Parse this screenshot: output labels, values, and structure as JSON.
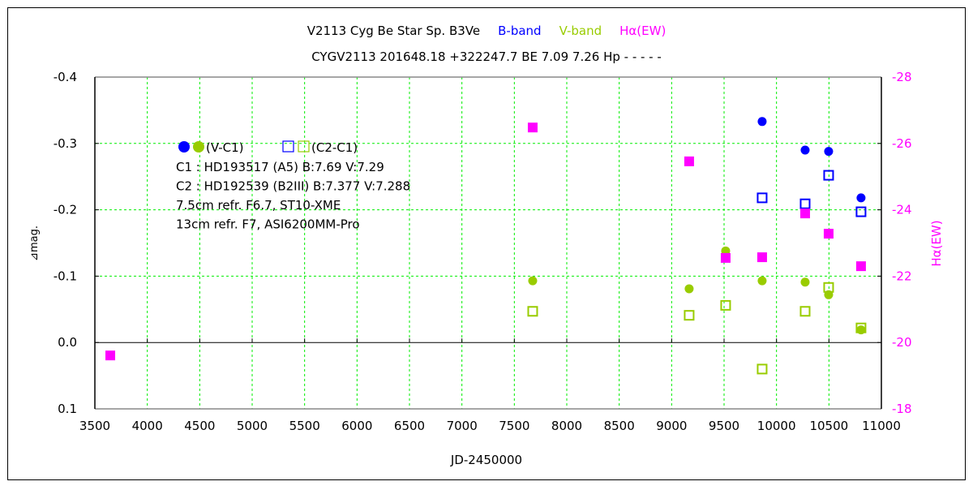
{
  "chart_data": {
    "type": "scatter",
    "title_parts": [
      {
        "text": "V2113 Cyg    Be Star    Sp. B3Ve",
        "color": "#000000"
      },
      {
        "text": "B-band",
        "color": "#0000ff"
      },
      {
        "text": "V-band",
        "color": "#99cc00"
      },
      {
        "text": "Hα(EW)",
        "color": "#ff00ff"
      }
    ],
    "subtitle": "CYGV2113 201648.18 +322247.7 BE 7.09 7.26 Hp - - - - -",
    "xlabel": "JD-2450000",
    "ylabel": "⊿mag.",
    "y2label": "Hα(EW)",
    "xlim": [
      3500,
      11000
    ],
    "ylim": [
      -0.4,
      0.1
    ],
    "y_inverted": true,
    "y2lim": [
      -28,
      -18
    ],
    "xticks": [
      "3500",
      "4000",
      "4500",
      "5000",
      "5500",
      "6000",
      "6500",
      "7000",
      "7500",
      "8000",
      "8500",
      "9000",
      "9500",
      "10000",
      "10500",
      "11000"
    ],
    "yticks": [
      "-0.4",
      "-0.3",
      "-0.2",
      "-0.1",
      "0.0",
      "0.1"
    ],
    "y2ticks": [
      "-28",
      "-26",
      "-24",
      "-22",
      "-20",
      "-18"
    ],
    "grid": true,
    "grid_color": "#00ee00",
    "legend": {
      "line1_a": "(V-C1)",
      "line1_b": "(C2-C1)",
      "lines": [
        "C1 : HD193517 (A5)   B:7.69 V:7.29",
        "C2 : HD192539 (B2III)   B:7.377 V:7.288",
        "7.5cm refr. F6.7,   ST10-XME",
        "13cm refr. F7,    ASI6200MM-Pro"
      ],
      "placement": "top-left"
    },
    "series": [
      {
        "marker": "filled-circle",
        "color": "#0000ff",
        "axis": "left",
        "x": [
          9863,
          10273,
          10497,
          10806
        ],
        "y": [
          -0.333,
          -0.29,
          -0.288,
          -0.218
        ]
      },
      {
        "marker": "open-square",
        "color": "#0000ff",
        "axis": "left",
        "x": [
          9863,
          10273,
          10497,
          10806
        ],
        "y": [
          -0.218,
          -0.209,
          -0.252,
          -0.197
        ]
      },
      {
        "marker": "filled-circle",
        "color": "#99cc00",
        "axis": "left",
        "x": [
          7675,
          9167,
          9515,
          9863,
          10273,
          10497,
          10806
        ],
        "y": [
          -0.093,
          -0.081,
          -0.138,
          -0.093,
          -0.091,
          -0.072,
          -0.019
        ]
      },
      {
        "marker": "open-square",
        "color": "#99cc00",
        "axis": "left",
        "x": [
          7675,
          9167,
          9515,
          9863,
          10273,
          10497,
          10806
        ],
        "y": [
          -0.047,
          -0.041,
          -0.056,
          0.04,
          -0.047,
          -0.083,
          -0.022
        ]
      },
      {
        "marker": "filled-square",
        "color": "#ff00ff",
        "axis": "right",
        "x": [
          3647,
          7675,
          9167,
          9515,
          9863,
          10273,
          10497,
          10806
        ],
        "y": [
          -19.61,
          -26.48,
          -25.46,
          -22.55,
          -22.57,
          -23.89,
          -23.28,
          -22.3
        ]
      }
    ]
  }
}
